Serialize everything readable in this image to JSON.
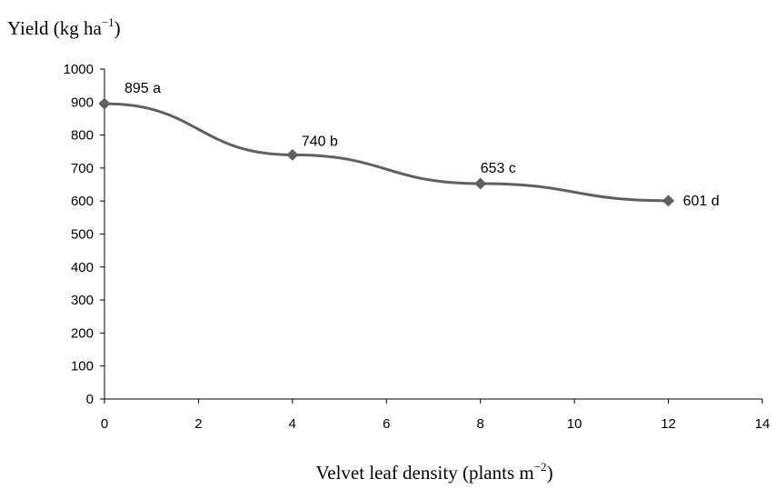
{
  "chart_data": {
    "type": "line",
    "title": "",
    "ylabel_base": "Yield (kg ha",
    "ylabel_exp": "−1",
    "ylabel_close": ")",
    "xlabel_base": "Velvet leaf density (plants m",
    "xlabel_exp": "−2",
    "xlabel_close": ")",
    "xlim": [
      0,
      14
    ],
    "ylim": [
      0,
      1000
    ],
    "xticks": [
      0,
      2,
      4,
      6,
      8,
      10,
      12,
      14
    ],
    "yticks": [
      0,
      100,
      200,
      300,
      400,
      500,
      600,
      700,
      800,
      900,
      1000
    ],
    "grid": false,
    "legend": "none",
    "series": [
      {
        "color": "#606060",
        "marker": "diamond",
        "x": [
          0,
          4,
          8,
          12
        ],
        "values": [
          895,
          740,
          653,
          601
        ],
        "labels": [
          "895 a",
          "740 b",
          "653 c",
          "601 d"
        ]
      }
    ]
  }
}
